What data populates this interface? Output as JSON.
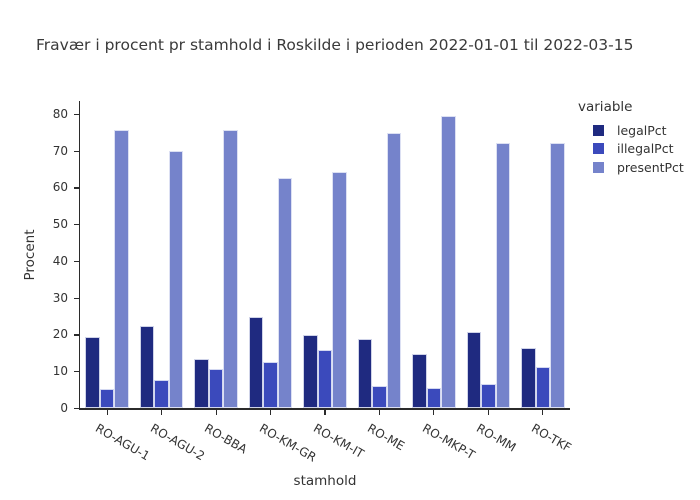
{
  "title": "Fravær i procent pr stamhold i Roskilde i perioden 2022-01-01 til 2022-03-15",
  "chart_data": {
    "type": "bar",
    "barmode": "grouped",
    "title": "Fravær i procent pr stamhold i Roskilde i perioden 2022-01-01 til 2022-03-15",
    "xlabel": "stamhold",
    "ylabel": "Procent",
    "legend_title": "variable",
    "legend_position": "top-right",
    "grid": false,
    "categories": [
      "RO-AGU-1",
      "RO-AGU-2",
      "RO-BBA",
      "RO-KM-GR",
      "RO-KM-IT",
      "RO-ME",
      "RO-MKP-T",
      "RO-MM",
      "RO-TKF"
    ],
    "series": [
      {
        "name": "legalPct",
        "color": "#1f2a80",
        "values": [
          19.3,
          22.4,
          13.3,
          24.8,
          19.8,
          18.8,
          14.8,
          20.8,
          16.3
        ]
      },
      {
        "name": "illegalPct",
        "color": "#3b4abc",
        "values": [
          5.2,
          7.7,
          10.7,
          12.4,
          15.7,
          6.0,
          5.5,
          6.6,
          11.1
        ]
      },
      {
        "name": "presentPct",
        "color": "#7583cb",
        "values": [
          75.5,
          69.9,
          75.5,
          62.5,
          64.3,
          74.9,
          79.4,
          72.2,
          72.2
        ]
      }
    ],
    "ylim": [
      0,
      83.5
    ],
    "yticks": [
      0,
      10,
      20,
      30,
      40,
      50,
      60,
      70,
      80
    ],
    "xtick_rotation_deg": 30
  },
  "colors": {
    "axis": "#2b2b2b",
    "text": "#333333",
    "background": "#ffffff"
  }
}
